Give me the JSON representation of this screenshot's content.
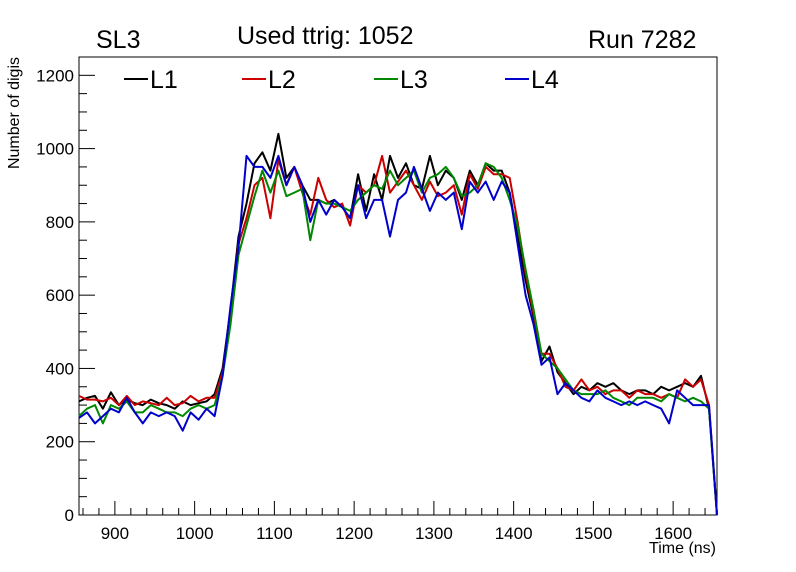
{
  "header": {
    "left_label": "SL3",
    "title": "Used ttrig: 1052",
    "right_label": "Run 7282"
  },
  "chart_data": {
    "type": "line",
    "title": "Used ttrig: 1052",
    "xlabel": "Time (ns)",
    "ylabel": "Number of digis",
    "xlim": [
      855,
      1655
    ],
    "ylim": [
      0,
      1250
    ],
    "x_ticks": [
      900,
      1000,
      1100,
      1200,
      1300,
      1400,
      1500,
      1600
    ],
    "y_ticks": [
      0,
      200,
      400,
      600,
      800,
      1000,
      1200
    ],
    "grid": false,
    "legend_position": "top",
    "x": [
      855,
      865,
      875,
      885,
      895,
      905,
      915,
      925,
      935,
      945,
      955,
      965,
      975,
      985,
      995,
      1005,
      1015,
      1025,
      1035,
      1045,
      1055,
      1065,
      1075,
      1085,
      1095,
      1105,
      1115,
      1125,
      1135,
      1145,
      1155,
      1165,
      1175,
      1185,
      1195,
      1205,
      1215,
      1225,
      1235,
      1245,
      1255,
      1265,
      1275,
      1285,
      1295,
      1305,
      1315,
      1325,
      1335,
      1345,
      1355,
      1365,
      1375,
      1385,
      1395,
      1405,
      1415,
      1425,
      1435,
      1445,
      1455,
      1465,
      1475,
      1485,
      1495,
      1505,
      1515,
      1525,
      1535,
      1545,
      1555,
      1565,
      1575,
      1585,
      1595,
      1605,
      1615,
      1625,
      1635,
      1645,
      1655
    ],
    "series": [
      {
        "name": "L1",
        "color": "#000000",
        "values": [
          310,
          320,
          325,
          290,
          335,
          300,
          315,
          305,
          300,
          315,
          305,
          300,
          290,
          310,
          300,
          305,
          310,
          330,
          400,
          560,
          760,
          850,
          960,
          990,
          940,
          1040,
          920,
          950,
          900,
          860,
          860,
          850,
          860,
          840,
          810,
          930,
          830,
          930,
          860,
          980,
          920,
          960,
          900,
          890,
          980,
          900,
          940,
          920,
          860,
          940,
          900,
          960,
          940,
          940,
          880,
          760,
          640,
          540,
          420,
          460,
          390,
          360,
          330,
          350,
          340,
          360,
          350,
          360,
          340,
          330,
          340,
          340,
          330,
          350,
          340,
          350,
          360,
          350,
          380,
          290,
          0
        ]
      },
      {
        "name": "L2",
        "color": "#cc0000",
        "values": [
          325,
          315,
          315,
          310,
          320,
          300,
          325,
          300,
          310,
          305,
          300,
          320,
          300,
          305,
          325,
          310,
          320,
          320,
          390,
          540,
          740,
          810,
          900,
          920,
          810,
          970,
          900,
          950,
          880,
          820,
          920,
          860,
          840,
          850,
          790,
          900,
          880,
          900,
          980,
          880,
          910,
          940,
          900,
          860,
          910,
          870,
          880,
          900,
          820,
          930,
          890,
          950,
          930,
          930,
          920,
          800,
          660,
          550,
          440,
          440,
          400,
          350,
          340,
          370,
          340,
          350,
          330,
          340,
          340,
          320,
          340,
          330,
          330,
          320,
          330,
          320,
          370,
          350,
          370,
          300,
          0
        ]
      },
      {
        "name": "L3",
        "color": "#008800",
        "values": [
          270,
          290,
          300,
          250,
          300,
          290,
          310,
          280,
          280,
          300,
          290,
          280,
          280,
          270,
          290,
          300,
          290,
          300,
          380,
          520,
          710,
          790,
          870,
          940,
          880,
          940,
          870,
          880,
          890,
          750,
          860,
          850,
          850,
          840,
          830,
          860,
          880,
          900,
          890,
          940,
          900,
          920,
          940,
          880,
          920,
          930,
          950,
          920,
          870,
          880,
          900,
          960,
          950,
          920,
          860,
          790,
          670,
          560,
          440,
          420,
          400,
          370,
          340,
          330,
          330,
          330,
          340,
          320,
          310,
          300,
          320,
          320,
          320,
          310,
          330,
          320,
          310,
          320,
          310,
          290,
          0
        ]
      },
      {
        "name": "L4",
        "color": "#0000cc",
        "values": [
          265,
          280,
          250,
          270,
          290,
          280,
          320,
          280,
          250,
          280,
          270,
          280,
          270,
          230,
          280,
          260,
          290,
          270,
          380,
          570,
          730,
          980,
          950,
          950,
          920,
          980,
          900,
          950,
          900,
          800,
          860,
          820,
          860,
          840,
          810,
          900,
          810,
          860,
          860,
          760,
          860,
          880,
          950,
          890,
          830,
          880,
          860,
          880,
          780,
          910,
          880,
          910,
          860,
          910,
          880,
          740,
          600,
          520,
          410,
          430,
          330,
          360,
          340,
          320,
          310,
          340,
          320,
          310,
          300,
          310,
          300,
          310,
          300,
          290,
          250,
          340,
          320,
          300,
          300,
          300,
          0
        ]
      }
    ]
  }
}
